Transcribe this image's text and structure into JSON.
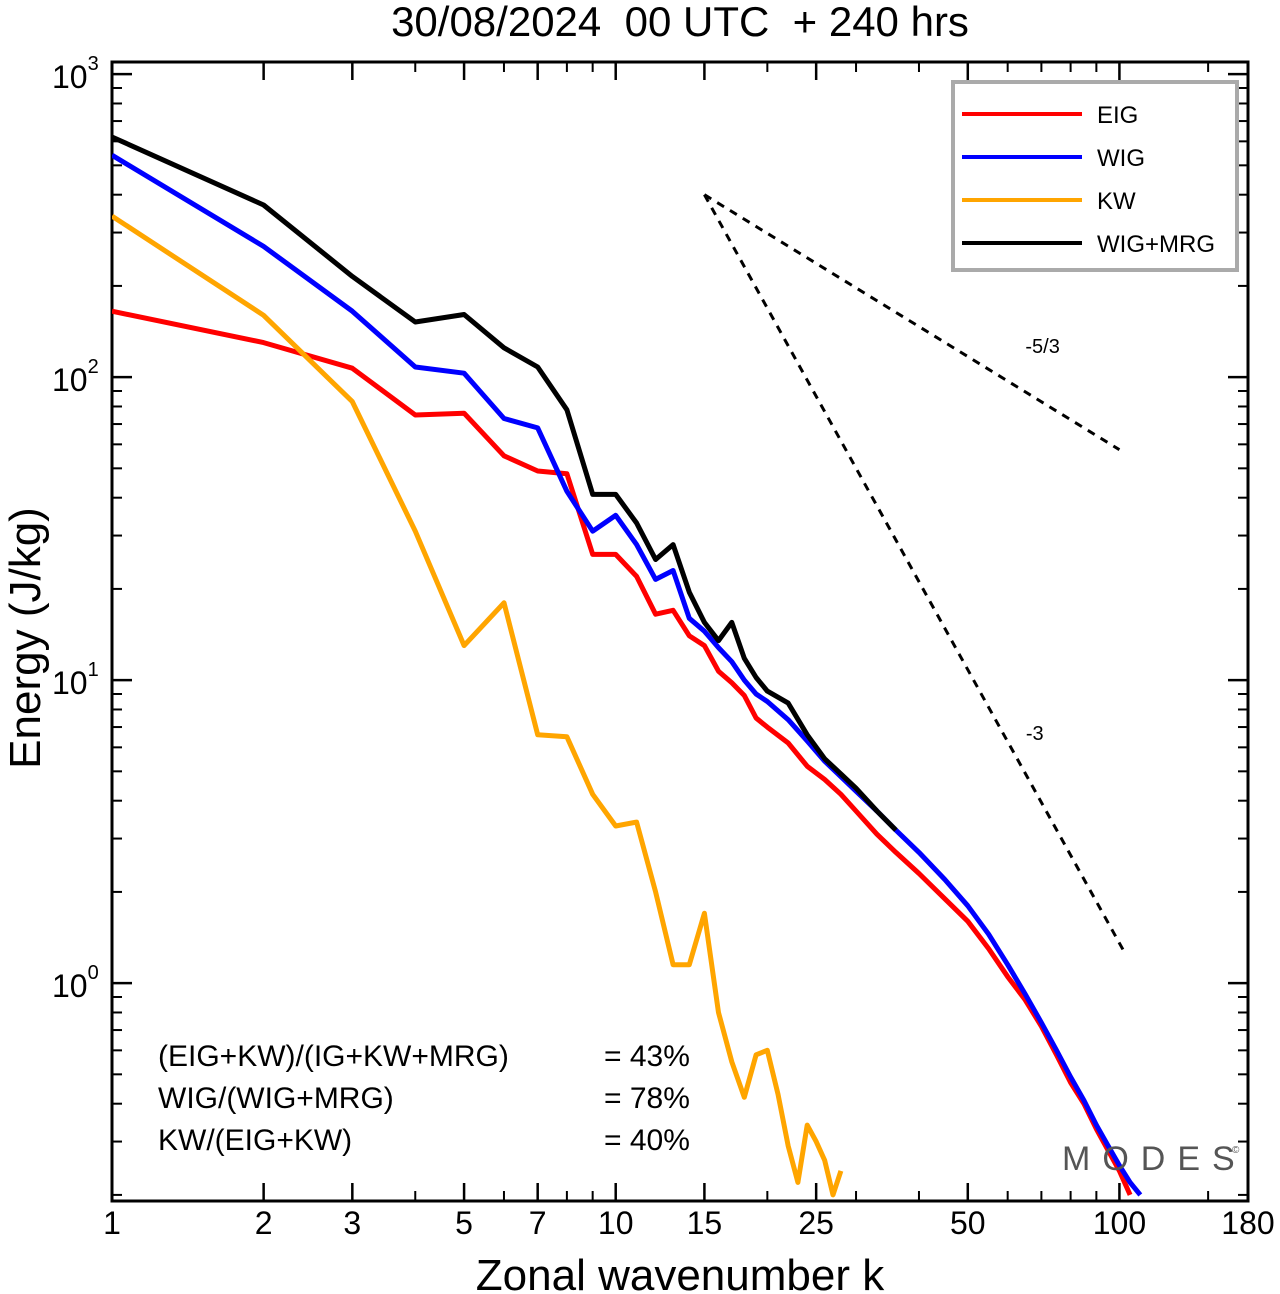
{
  "chart_data": {
    "type": "line",
    "title": "30/08/2024  00 UTC  + 240 hrs",
    "xlabel": "Zonal wavenumber k",
    "ylabel": "Energy (J/kg)",
    "x_scale": "log",
    "y_scale": "log",
    "xlim": [
      1,
      180
    ],
    "ylim": [
      0.2,
      1000
    ],
    "x_ticks": [
      1,
      2,
      3,
      5,
      7,
      10,
      15,
      25,
      50,
      100,
      180
    ],
    "x_tick_labels": [
      "1",
      "2",
      "3",
      "5",
      "7",
      "10",
      "15",
      "25",
      "50",
      "100",
      "180"
    ],
    "y_ticks": [
      {
        "value": 1000,
        "base": "10",
        "exp": "3"
      },
      {
        "value": 100,
        "base": "10",
        "exp": "2"
      },
      {
        "value": 10,
        "base": "10",
        "exp": "1"
      },
      {
        "value": 1,
        "base": "10",
        "exp": "0"
      }
    ],
    "legend_position": "top-right",
    "series": [
      {
        "name": "EIG",
        "color": "#ff0000",
        "x": [
          1,
          2,
          3,
          4,
          5,
          6,
          7,
          8,
          9,
          10,
          11,
          12,
          13,
          14,
          15,
          16,
          17,
          18,
          19,
          20,
          22,
          24,
          26,
          28,
          30,
          33,
          36,
          40,
          45,
          50,
          55,
          60,
          65,
          70,
          75,
          80,
          85,
          90,
          95,
          100,
          105
        ],
        "y": [
          165,
          130,
          107,
          75,
          76,
          55,
          49,
          48,
          26,
          26,
          22,
          16.5,
          17,
          14,
          13,
          10.7,
          9.8,
          8.9,
          7.5,
          7,
          6.2,
          5.2,
          4.7,
          4.2,
          3.7,
          3.1,
          2.7,
          2.3,
          1.9,
          1.6,
          1.3,
          1.05,
          0.88,
          0.72,
          0.58,
          0.47,
          0.4,
          0.33,
          0.28,
          0.24,
          0.2
        ]
      },
      {
        "name": "WIG",
        "color": "#0000ff",
        "x": [
          1,
          2,
          3,
          4,
          5,
          6,
          7,
          8,
          9,
          10,
          11,
          12,
          13,
          14,
          15,
          16,
          17,
          18,
          19,
          20,
          22,
          24,
          26,
          28,
          30,
          33,
          36,
          40,
          45,
          50,
          55,
          60,
          65,
          70,
          75,
          80,
          85,
          90,
          95,
          100,
          105,
          110
        ],
        "y": [
          540,
          270,
          165,
          108,
          103,
          73,
          68,
          42,
          31,
          35,
          28,
          21.5,
          23,
          16,
          14.5,
          12.8,
          11.5,
          10,
          9,
          8.5,
          7.4,
          6.3,
          5.4,
          4.8,
          4.3,
          3.7,
          3.2,
          2.7,
          2.2,
          1.8,
          1.45,
          1.15,
          0.92,
          0.74,
          0.6,
          0.49,
          0.41,
          0.34,
          0.29,
          0.25,
          0.22,
          0.2
        ]
      },
      {
        "name": "KW",
        "color": "#ffa500",
        "x": [
          1,
          2,
          3,
          4,
          5,
          6,
          7,
          8,
          9,
          10,
          11,
          12,
          13,
          14,
          15,
          16,
          17,
          18,
          19,
          20,
          21,
          22,
          23,
          24,
          25,
          26,
          27,
          28
        ],
        "y": [
          340,
          160,
          83,
          31,
          13,
          18,
          6.6,
          6.5,
          4.2,
          3.3,
          3.4,
          2,
          1.15,
          1.15,
          1.7,
          0.8,
          0.55,
          0.42,
          0.58,
          0.6,
          0.43,
          0.29,
          0.22,
          0.34,
          0.3,
          0.26,
          0.2,
          0.24
        ]
      },
      {
        "name": "WIG+MRG",
        "color": "#000000",
        "x": [
          1,
          2,
          3,
          4,
          5,
          6,
          7,
          8,
          9,
          10,
          11,
          12,
          13,
          14,
          15,
          16,
          17,
          18,
          19,
          20,
          22,
          24,
          26,
          28,
          30,
          33,
          36
        ],
        "y": [
          620,
          370,
          215,
          152,
          161,
          125,
          108,
          78,
          41,
          41,
          33,
          25,
          28,
          19.5,
          15.5,
          13.5,
          15.5,
          11.8,
          10.2,
          9.2,
          8.4,
          6.6,
          5.5,
          4.9,
          4.4,
          3.7,
          3.2
        ]
      }
    ],
    "reference_lines": [
      {
        "label": "-5/3",
        "slope": -1.6667,
        "x": [
          15,
          100
        ],
        "y": [
          400,
          57.6
        ]
      },
      {
        "label": "-3",
        "slope": -3,
        "x": [
          15,
          103
        ],
        "y": [
          400,
          1.24
        ]
      }
    ],
    "stats": [
      {
        "label": "(EIG+KW)/(IG+KW+MRG)",
        "value": "= 43%"
      },
      {
        "label": "WIG/(WIG+MRG)",
        "value": "= 78%"
      },
      {
        "label": "KW/(EIG+KW)",
        "value": "= 40%"
      }
    ],
    "watermark": "MODES"
  }
}
